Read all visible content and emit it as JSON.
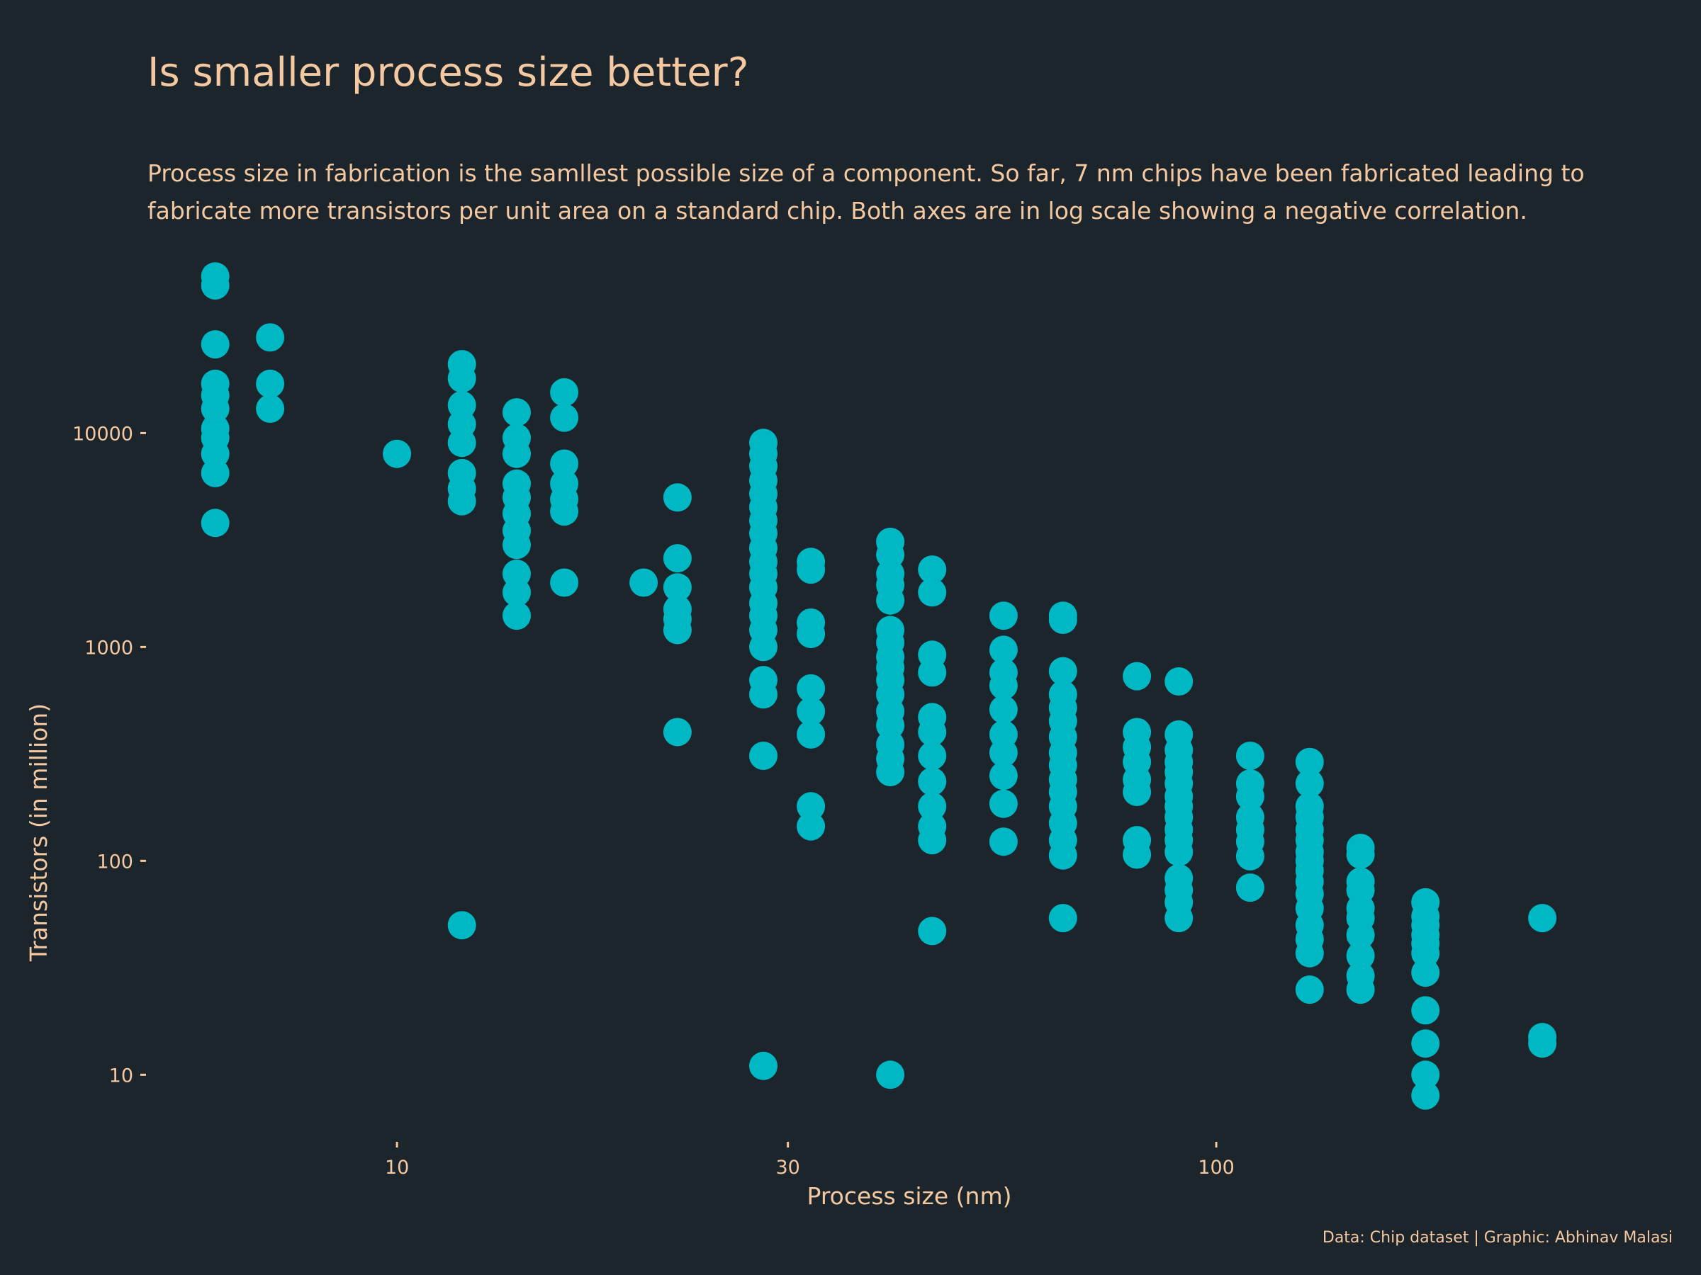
{
  "title": "Is smaller process size better?",
  "subtitle": "Process size in fabrication is the samllest possible size of a component. So far, 7 nm chips have been fabricated leading to fabricate more transistors per unit area on a standard chip. Both axes are in log scale showing a negative correlation.",
  "caption": "Data: Chip dataset | Graphic: Abhinav Malasi",
  "colors": {
    "background": "#1c252c",
    "text": "#f4c9a1",
    "points": "#00b8c4"
  },
  "chart_data": {
    "type": "scatter",
    "xlabel": "Process size (nm)",
    "ylabel": "Transistors (in million)",
    "x_scale": "log",
    "y_scale": "log",
    "xlim": [
      5.5,
      320
    ],
    "ylim": [
      6.2,
      68000
    ],
    "x_ticks": [
      {
        "value": 10,
        "label": "10"
      },
      {
        "value": 30,
        "label": "30"
      },
      {
        "value": 100,
        "label": "100"
      }
    ],
    "y_ticks": [
      {
        "value": 10,
        "label": "10"
      },
      {
        "value": 100,
        "label": "100"
      },
      {
        "value": 1000,
        "label": "1000"
      },
      {
        "value": 10000,
        "label": "10000"
      }
    ],
    "grid": false,
    "legend": "none",
    "points": [
      [
        6,
        54000
      ],
      [
        6,
        49000
      ],
      [
        6,
        26000
      ],
      [
        6,
        17000
      ],
      [
        6,
        15000
      ],
      [
        6,
        13000
      ],
      [
        6,
        10500
      ],
      [
        6,
        9500
      ],
      [
        6,
        8000
      ],
      [
        6,
        6500
      ],
      [
        6,
        3800
      ],
      [
        7,
        28000
      ],
      [
        7,
        17000
      ],
      [
        7,
        13000
      ],
      [
        10,
        8000
      ],
      [
        12,
        21000
      ],
      [
        12,
        18000
      ],
      [
        12,
        13500
      ],
      [
        12,
        11000
      ],
      [
        12,
        9000
      ],
      [
        12,
        6500
      ],
      [
        12,
        5500
      ],
      [
        12,
        4800
      ],
      [
        12,
        50
      ],
      [
        14,
        12500
      ],
      [
        14,
        9500
      ],
      [
        14,
        8000
      ],
      [
        14,
        5800
      ],
      [
        14,
        5000
      ],
      [
        14,
        4200
      ],
      [
        14,
        3500
      ],
      [
        14,
        3000
      ],
      [
        14,
        2200
      ],
      [
        14,
        1800
      ],
      [
        14,
        1400
      ],
      [
        16,
        15500
      ],
      [
        16,
        11800
      ],
      [
        16,
        7200
      ],
      [
        16,
        5800
      ],
      [
        16,
        4900
      ],
      [
        16,
        4300
      ],
      [
        16,
        2000
      ],
      [
        20,
        2000
      ],
      [
        22,
        5000
      ],
      [
        22,
        2600
      ],
      [
        22,
        1900
      ],
      [
        22,
        1500
      ],
      [
        22,
        1350
      ],
      [
        22,
        1200
      ],
      [
        22,
        400
      ],
      [
        28,
        9000
      ],
      [
        28,
        8000
      ],
      [
        28,
        7000
      ],
      [
        28,
        6000
      ],
      [
        28,
        5200
      ],
      [
        28,
        4500
      ],
      [
        28,
        3900
      ],
      [
        28,
        3400
      ],
      [
        28,
        2900
      ],
      [
        28,
        2500
      ],
      [
        28,
        2200
      ],
      [
        28,
        1900
      ],
      [
        28,
        1600
      ],
      [
        28,
        1400
      ],
      [
        28,
        1200
      ],
      [
        28,
        1000
      ],
      [
        28,
        700
      ],
      [
        28,
        600
      ],
      [
        28,
        310
      ],
      [
        28,
        11
      ],
      [
        32,
        2500
      ],
      [
        32,
        2300
      ],
      [
        32,
        1300
      ],
      [
        32,
        1150
      ],
      [
        32,
        640
      ],
      [
        32,
        500
      ],
      [
        32,
        390
      ],
      [
        32,
        180
      ],
      [
        32,
        145
      ],
      [
        40,
        3100
      ],
      [
        40,
        2700
      ],
      [
        40,
        2200
      ],
      [
        40,
        1950
      ],
      [
        40,
        1650
      ],
      [
        40,
        1200
      ],
      [
        40,
        1050
      ],
      [
        40,
        900
      ],
      [
        40,
        800
      ],
      [
        40,
        700
      ],
      [
        40,
        600
      ],
      [
        40,
        500
      ],
      [
        40,
        430
      ],
      [
        40,
        350
      ],
      [
        40,
        300
      ],
      [
        40,
        260
      ],
      [
        40,
        10
      ],
      [
        45,
        2300
      ],
      [
        45,
        1800
      ],
      [
        45,
        920
      ],
      [
        45,
        760
      ],
      [
        45,
        470
      ],
      [
        45,
        400
      ],
      [
        45,
        310
      ],
      [
        45,
        235
      ],
      [
        45,
        180
      ],
      [
        45,
        145
      ],
      [
        45,
        125
      ],
      [
        45,
        47
      ],
      [
        55,
        1400
      ],
      [
        55,
        970
      ],
      [
        55,
        760
      ],
      [
        55,
        660
      ],
      [
        55,
        510
      ],
      [
        55,
        390
      ],
      [
        55,
        320
      ],
      [
        55,
        250
      ],
      [
        55,
        185
      ],
      [
        55,
        123
      ],
      [
        65,
        1400
      ],
      [
        65,
        1340
      ],
      [
        65,
        770
      ],
      [
        65,
        600
      ],
      [
        65,
        520
      ],
      [
        65,
        450
      ],
      [
        65,
        380
      ],
      [
        65,
        320
      ],
      [
        65,
        280
      ],
      [
        65,
        240
      ],
      [
        65,
        210
      ],
      [
        65,
        180
      ],
      [
        65,
        150
      ],
      [
        65,
        125
      ],
      [
        65,
        106
      ],
      [
        65,
        54
      ],
      [
        80,
        730
      ],
      [
        80,
        400
      ],
      [
        80,
        340
      ],
      [
        80,
        290
      ],
      [
        80,
        240
      ],
      [
        80,
        210
      ],
      [
        80,
        125
      ],
      [
        80,
        107
      ],
      [
        90,
        690
      ],
      [
        90,
        390
      ],
      [
        90,
        330
      ],
      [
        90,
        290
      ],
      [
        90,
        260
      ],
      [
        90,
        230
      ],
      [
        90,
        200
      ],
      [
        90,
        180
      ],
      [
        90,
        160
      ],
      [
        90,
        140
      ],
      [
        90,
        125
      ],
      [
        90,
        110
      ],
      [
        90,
        83
      ],
      [
        90,
        73
      ],
      [
        90,
        64
      ],
      [
        90,
        54
      ],
      [
        110,
        310
      ],
      [
        110,
        230
      ],
      [
        110,
        200
      ],
      [
        110,
        160
      ],
      [
        110,
        140
      ],
      [
        110,
        123
      ],
      [
        110,
        105
      ],
      [
        110,
        75
      ],
      [
        130,
        290
      ],
      [
        130,
        230
      ],
      [
        130,
        180
      ],
      [
        130,
        160
      ],
      [
        130,
        140
      ],
      [
        130,
        125
      ],
      [
        130,
        110
      ],
      [
        130,
        100
      ],
      [
        130,
        90
      ],
      [
        130,
        80
      ],
      [
        130,
        70
      ],
      [
        130,
        60
      ],
      [
        130,
        50
      ],
      [
        130,
        43
      ],
      [
        130,
        37
      ],
      [
        130,
        25
      ],
      [
        150,
        115
      ],
      [
        150,
        107
      ],
      [
        150,
        80
      ],
      [
        150,
        73
      ],
      [
        150,
        60
      ],
      [
        150,
        54
      ],
      [
        150,
        45
      ],
      [
        150,
        36
      ],
      [
        150,
        29
      ],
      [
        150,
        25
      ],
      [
        180,
        64
      ],
      [
        180,
        55
      ],
      [
        180,
        50
      ],
      [
        180,
        45
      ],
      [
        180,
        41
      ],
      [
        180,
        37
      ],
      [
        180,
        30
      ],
      [
        180,
        20
      ],
      [
        180,
        14
      ],
      [
        180,
        10
      ],
      [
        180,
        8
      ],
      [
        250,
        54
      ],
      [
        250,
        15
      ],
      [
        250,
        14
      ]
    ]
  }
}
